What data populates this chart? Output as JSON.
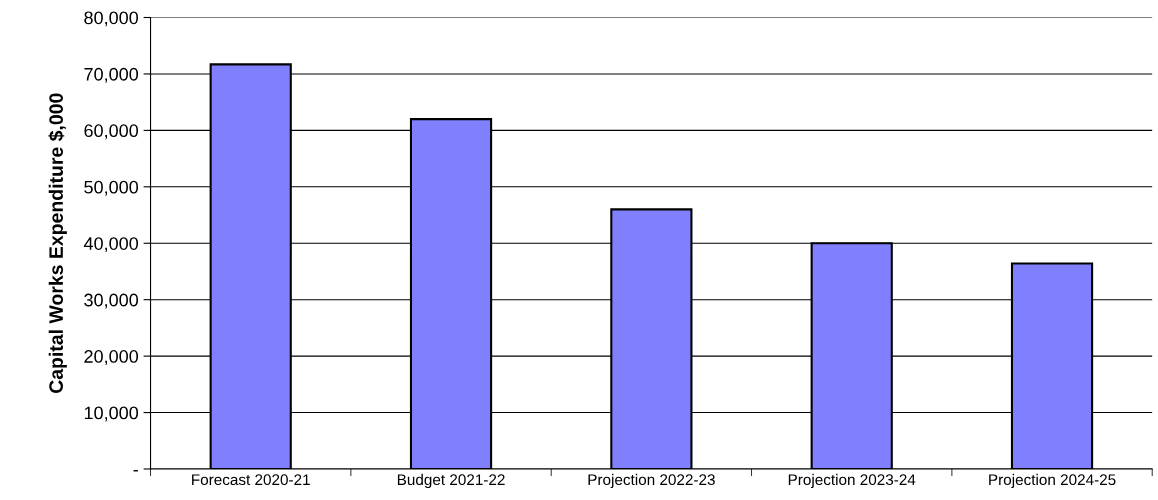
{
  "chart_data": {
    "type": "bar",
    "ylabel": "Capital Works Expenditure $,000",
    "categories": [
      "Forecast 2020-21",
      "Budget 2021-22",
      "Projection 2022-23",
      "Projection 2023-24",
      "Projection 2024-25"
    ],
    "values": [
      71700,
      62000,
      46000,
      40000,
      36400
    ],
    "color": "#8080ff",
    "ylim": [
      0,
      80000
    ],
    "yticks": [
      {
        "value": 0,
        "label": "-"
      },
      {
        "value": 10000,
        "label": "10,000"
      },
      {
        "value": 20000,
        "label": "20,000"
      },
      {
        "value": 30000,
        "label": "30,000"
      },
      {
        "value": 40000,
        "label": "40,000"
      },
      {
        "value": 50000,
        "label": "50,000"
      },
      {
        "value": 60000,
        "label": "60,000"
      },
      {
        "value": 70000,
        "label": "70,000"
      },
      {
        "value": 80000,
        "label": "80,000"
      }
    ],
    "grid": "y"
  }
}
